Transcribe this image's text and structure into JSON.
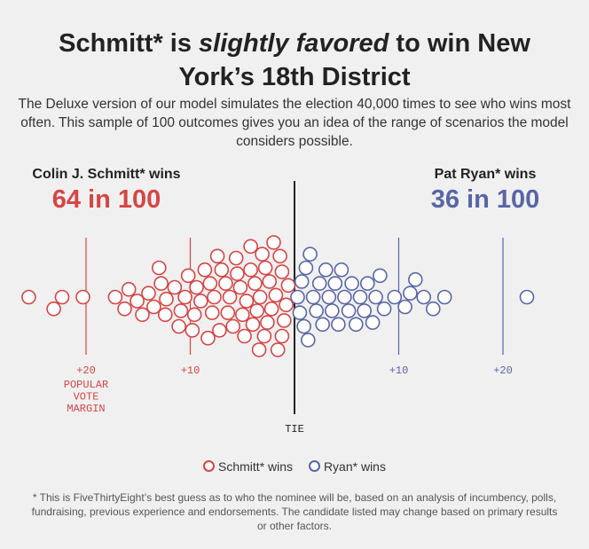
{
  "header": {
    "title_prefix": "Schmitt* is ",
    "title_emphasis": "slightly favored",
    "title_suffix": " to win New York’s 18th District",
    "subtitle": "The Deluxe version of our model simulates the election 40,000 times to see who wins most often. This sample of 100 outcomes gives you an idea of the range of scenarios the model considers possible."
  },
  "colors": {
    "schmitt": "#d64545",
    "ryan": "#5866a6",
    "tie_line": "#222222"
  },
  "candidates": {
    "schmitt": {
      "label": "Colin J. Schmitt* wins",
      "count": "64 in 100"
    },
    "ryan": {
      "label": "Pat Ryan* wins",
      "count": "36 in 100"
    }
  },
  "legend": {
    "schmitt": "Schmitt* wins",
    "ryan": "Ryan* wins"
  },
  "footnote": "* This is FiveThirtyEight’s best guess as to who the nominee will be, based on an analysis of incumbency, polls, fundraising, previous experience and endorsements. The candidate listed may change based on primary results or other factors.",
  "chart_data": {
    "type": "scatter",
    "description_axis": "popular vote margin",
    "x_axis_label": "POPULAR VOTE MARGIN",
    "tie_label": "TIE",
    "xlim": [
      -26,
      23
    ],
    "ticks": [
      {
        "value": -20,
        "label": "+20",
        "side": "schmitt"
      },
      {
        "value": -10,
        "label": "+10",
        "side": "schmitt"
      },
      {
        "value": 10,
        "label": "+10",
        "side": "ryan"
      },
      {
        "value": 20,
        "label": "+20",
        "side": "ryan"
      }
    ],
    "series": [
      {
        "name": "Schmitt* wins",
        "color": "#d64545",
        "values": [
          -25.5,
          -23.1,
          -22.3,
          -20.3,
          -17.2,
          -16.3,
          -15.9,
          -15.1,
          -14.6,
          -14.0,
          -13.5,
          -13.0,
          -12.8,
          -12.3,
          -11.5,
          -11.1,
          -10.5,
          -10.2,
          -9.8,
          -9.6,
          -9.4,
          -9.0,
          -8.6,
          -8.3,
          -8.1,
          -7.7,
          -7.4,
          -7.2,
          -7.0,
          -6.6,
          -6.4,
          -6.2,
          -5.9,
          -5.5,
          -5.2,
          -5.0,
          -4.8,
          -4.6,
          -4.2,
          -4.0,
          -3.8,
          -3.6,
          -3.4,
          -3.1,
          -2.8,
          -2.6,
          -2.4,
          -2.2,
          -2.0,
          -1.8,
          -1.6,
          -1.4,
          -1.2,
          -1.0,
          -0.8,
          -0.6,
          -5.6,
          -3.3,
          -4.2,
          -2.9,
          -7.9,
          -10.9,
          -12.4,
          -1.2
        ]
      },
      {
        "name": "Ryan* wins",
        "color": "#5866a6",
        "values": [
          0.3,
          0.5,
          0.7,
          0.9,
          1.1,
          1.3,
          1.5,
          1.8,
          2.1,
          2.4,
          2.7,
          3.0,
          3.3,
          3.6,
          3.9,
          4.2,
          4.5,
          4.8,
          5.2,
          5.5,
          5.9,
          6.3,
          6.7,
          7.0,
          7.5,
          7.8,
          8.2,
          8.6,
          9.6,
          10.6,
          11.1,
          11.6,
          12.4,
          13.3,
          14.4,
          22.3
        ]
      }
    ]
  }
}
